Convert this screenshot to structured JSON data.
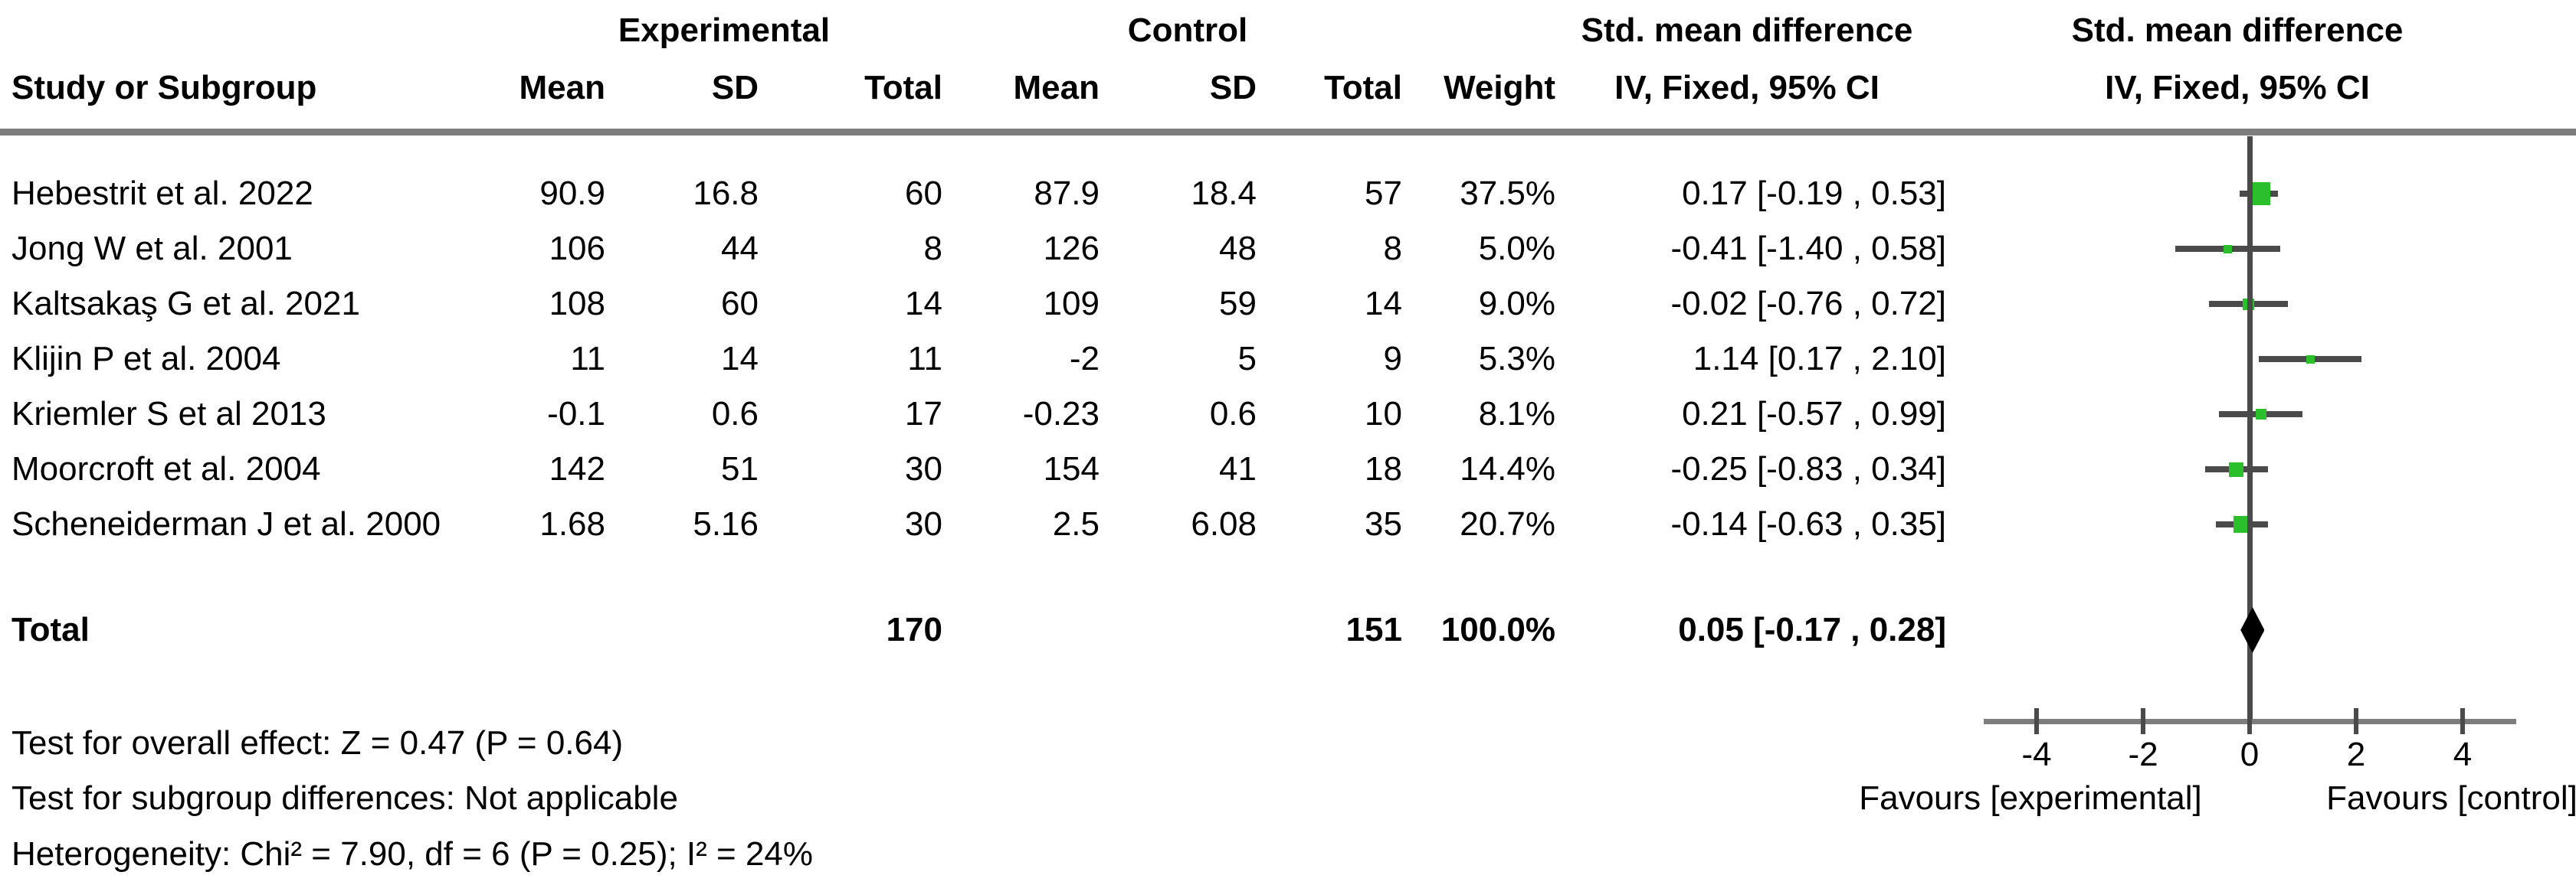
{
  "table": {
    "group_headers": {
      "experimental": "Experimental",
      "control": "Control",
      "smd_text_col": "Std. mean difference",
      "smd_plot_col": "Std. mean difference"
    },
    "column_headers": {
      "study": "Study or Subgroup",
      "exp_mean": "Mean",
      "exp_sd": "SD",
      "exp_total": "Total",
      "ctrl_mean": "Mean",
      "ctrl_sd": "SD",
      "ctrl_total": "Total",
      "weight": "Weight",
      "ci_text_col": "IV, Fixed, 95% CI",
      "ci_plot_col": "IV, Fixed, 95% CI"
    }
  },
  "chart_data": {
    "type": "forest",
    "effect_measure": "Std. mean difference (IV, Fixed, 95% CI)",
    "x_axis": {
      "ticks": [
        -4,
        -2,
        0,
        2,
        4
      ],
      "min": -5,
      "max": 5,
      "zero_reference": 0
    },
    "studies": [
      {
        "name": "Hebestrit et al. 2022",
        "exp_mean": "90.9",
        "exp_sd": "16.8",
        "exp_total": "60",
        "ctrl_mean": "87.9",
        "ctrl_sd": "18.4",
        "ctrl_total": "57",
        "weight": "37.5%",
        "weight_pct": 37.5,
        "smd": 0.17,
        "ci_low": -0.19,
        "ci_high": 0.53,
        "ci_label": "0.17 [-0.19 , 0.53]"
      },
      {
        "name": "Jong W et al. 2001",
        "exp_mean": "106",
        "exp_sd": "44",
        "exp_total": "8",
        "ctrl_mean": "126",
        "ctrl_sd": "48",
        "ctrl_total": "8",
        "weight": "5.0%",
        "weight_pct": 5.0,
        "smd": -0.41,
        "ci_low": -1.4,
        "ci_high": 0.58,
        "ci_label": "-0.41 [-1.40 , 0.58]"
      },
      {
        "name": "Kaltsakaş G et al. 2021",
        "exp_mean": "108",
        "exp_sd": "60",
        "exp_total": "14",
        "ctrl_mean": "109",
        "ctrl_sd": "59",
        "ctrl_total": "14",
        "weight": "9.0%",
        "weight_pct": 9.0,
        "smd": -0.02,
        "ci_low": -0.76,
        "ci_high": 0.72,
        "ci_label": "-0.02 [-0.76 , 0.72]"
      },
      {
        "name": "Klijin P et al. 2004",
        "exp_mean": "11",
        "exp_sd": "14",
        "exp_total": "11",
        "ctrl_mean": "-2",
        "ctrl_sd": "5",
        "ctrl_total": "9",
        "weight": "5.3%",
        "weight_pct": 5.3,
        "smd": 1.14,
        "ci_low": 0.17,
        "ci_high": 2.1,
        "ci_label": "1.14 [0.17 , 2.10]"
      },
      {
        "name": "Kriemler S et al 2013",
        "exp_mean": "-0.1",
        "exp_sd": "0.6",
        "exp_total": "17",
        "ctrl_mean": "-0.23",
        "ctrl_sd": "0.6",
        "ctrl_total": "10",
        "weight": "8.1%",
        "weight_pct": 8.1,
        "smd": 0.21,
        "ci_low": -0.57,
        "ci_high": 0.99,
        "ci_label": "0.21 [-0.57 , 0.99]"
      },
      {
        "name": "Moorcroft et al. 2004",
        "exp_mean": "142",
        "exp_sd": "51",
        "exp_total": "30",
        "ctrl_mean": "154",
        "ctrl_sd": "41",
        "ctrl_total": "18",
        "weight": "14.4%",
        "weight_pct": 14.4,
        "smd": -0.25,
        "ci_low": -0.83,
        "ci_high": 0.34,
        "ci_label": "-0.25 [-0.83 , 0.34]"
      },
      {
        "name": "Scheneiderman J et al. 2000",
        "exp_mean": "1.68",
        "exp_sd": "5.16",
        "exp_total": "30",
        "ctrl_mean": "2.5",
        "ctrl_sd": "6.08",
        "ctrl_total": "35",
        "weight": "20.7%",
        "weight_pct": 20.7,
        "smd": -0.14,
        "ci_low": -0.63,
        "ci_high": 0.35,
        "ci_label": "-0.14 [-0.63 , 0.35]"
      }
    ],
    "total": {
      "label": "Total",
      "exp_total": "170",
      "ctrl_total": "151",
      "weight": "100.0%",
      "smd": 0.05,
      "ci_low": -0.17,
      "ci_high": 0.28,
      "ci_label": "0.05 [-0.17 , 0.28]"
    },
    "favours_left": "Favours [experimental]",
    "favours_right": "Favours [control]",
    "colors": {
      "marker_green": "#2bbf2b",
      "ci_line": "#4a4a4a",
      "axis_gray": "#7d7d7d",
      "diamond_black": "#000000"
    }
  },
  "footer": {
    "line1": "Test for overall effect: Z = 0.47 (P = 0.64)",
    "line2": "Test for subgroup differences: Not applicable",
    "line3": "Heterogeneity: Chi² = 7.90, df = 6 (P = 0.25); I² = 24%"
  }
}
